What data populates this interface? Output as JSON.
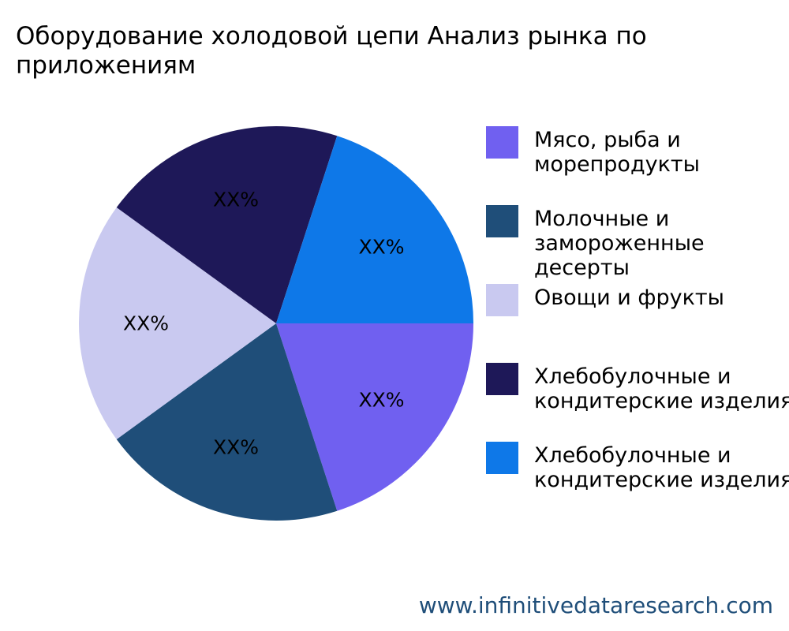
{
  "page": {
    "title": "Оборудование холодовой цепи Анализ рынка по приложениям",
    "watermark": "www.infinitivedataresearch.com"
  },
  "chart_data": {
    "type": "pie",
    "title": "Оборудование холодовой цепи Анализ рынка по приложениям",
    "legend_position": "right",
    "start_angle_deg": 90,
    "direction": "clockwise",
    "slices": [
      {
        "label": "Мясо, рыба и морепродукты",
        "value": 20,
        "data_label": "XX%",
        "color": "#7060f0"
      },
      {
        "label": "Молочные и замороженные десерты",
        "value": 20,
        "data_label": "XX%",
        "color": "#1f4e79"
      },
      {
        "label": "Овощи и фрукты",
        "value": 20,
        "data_label": "XX%",
        "color": "#c9c9f0"
      },
      {
        "label": "Хлебобулочные и кондитерские изделия",
        "value": 20,
        "data_label": "XX%",
        "color": "#1e1858"
      },
      {
        "label": "Хлебобулочные и кондитерские изделия",
        "value": 20,
        "data_label": "XX%",
        "color": "#0e78e8"
      }
    ]
  }
}
